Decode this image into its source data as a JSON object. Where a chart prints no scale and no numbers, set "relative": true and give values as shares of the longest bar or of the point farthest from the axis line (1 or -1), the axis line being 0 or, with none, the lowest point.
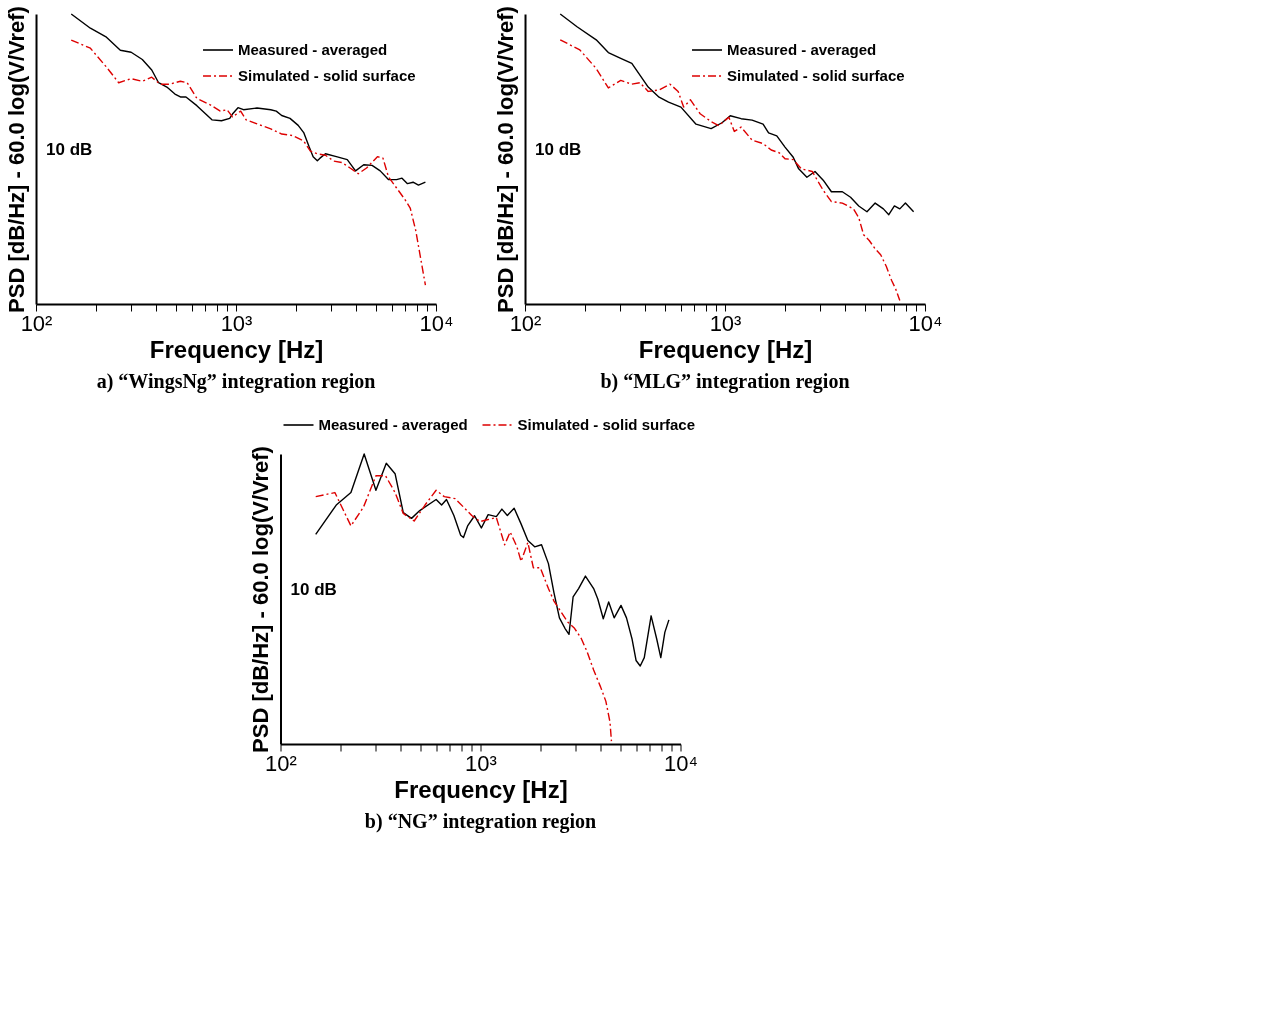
{
  "chart_data": [
    {
      "type": "line",
      "relative": true,
      "log": "x",
      "grid": false,
      "legend": "top right",
      "title": "a) “WingsNg” integration region",
      "xlabel": "Frequency [Hz]",
      "ylabel": "PSD [dB/Hz] - 60.0 log(V/Vref)",
      "annotations": [
        "10 dB"
      ],
      "xlim": [
        100,
        10000
      ],
      "xticks": [
        {
          "value": 100,
          "label": "10²"
        },
        {
          "value": 200,
          "label": null
        },
        {
          "value": 300,
          "label": null
        },
        {
          "value": 400,
          "label": null
        },
        {
          "value": 500,
          "label": null
        },
        {
          "value": 600,
          "label": null
        },
        {
          "value": 700,
          "label": null
        },
        {
          "value": 800,
          "label": null
        },
        {
          "value": 900,
          "label": null
        },
        {
          "value": 1000,
          "label": "10³"
        },
        {
          "value": 2000,
          "label": null
        },
        {
          "value": 3000,
          "label": null
        },
        {
          "value": 4000,
          "label": null
        },
        {
          "value": 5000,
          "label": null
        },
        {
          "value": 6000,
          "label": null
        },
        {
          "value": 7000,
          "label": null
        },
        {
          "value": 8000,
          "label": null
        },
        {
          "value": 9000,
          "label": null
        },
        {
          "value": 10000,
          "label": "10⁴"
        }
      ],
      "series": [
        {
          "name": "Measured - averaged",
          "color": "#000000",
          "line_style": "solid",
          "x": [
            150,
            187,
            225,
            264,
            299,
            340,
            379,
            410,
            451,
            495,
            527,
            562,
            637,
            758,
            846,
            930,
            960,
            1023,
            1090,
            1274,
            1492,
            1589,
            1692,
            1862,
            2046,
            2180,
            2320,
            2430,
            2550,
            2630,
            2800,
            3175,
            3600,
            3960,
            4350,
            4790,
            5260,
            5780,
            6350,
            6760,
            7200,
            7680,
            8170,
            8850
          ],
          "values": [
            1.0,
            0.951,
            0.92,
            0.875,
            0.868,
            0.843,
            0.807,
            0.763,
            0.748,
            0.724,
            0.714,
            0.714,
            0.684,
            0.635,
            0.632,
            0.64,
            0.655,
            0.677,
            0.67,
            0.676,
            0.67,
            0.665,
            0.65,
            0.64,
            0.616,
            0.591,
            0.542,
            0.508,
            0.494,
            0.503,
            0.518,
            0.508,
            0.498,
            0.459,
            0.48,
            0.478,
            0.459,
            0.429,
            0.429,
            0.434,
            0.415,
            0.42,
            0.41,
            0.42
          ]
        },
        {
          "name": "Simulated - solid surface",
          "color": "#dd0000",
          "line_style": "dashed",
          "x": [
            150,
            187,
            225,
            259,
            299,
            340,
            379,
            417,
            465,
            527,
            570,
            637,
            747,
            834,
            902,
            960,
            1055,
            1124,
            1274,
            1492,
            1692,
            1918,
            2180,
            2355,
            2550,
            2800,
            3075,
            3380,
            3720,
            4085,
            4495,
            5095,
            5430,
            5780,
            6350,
            6980,
            7430,
            7920,
            8440,
            8850
          ],
          "values": [
            0.91,
            0.882,
            0.817,
            0.763,
            0.777,
            0.768,
            0.782,
            0.758,
            0.758,
            0.768,
            0.763,
            0.709,
            0.686,
            0.665,
            0.67,
            0.645,
            0.665,
            0.635,
            0.621,
            0.604,
            0.586,
            0.581,
            0.562,
            0.527,
            0.518,
            0.513,
            0.493,
            0.488,
            0.469,
            0.449,
            0.469,
            0.508,
            0.503,
            0.439,
            0.4,
            0.361,
            0.331,
            0.253,
            0.145,
            0.065
          ]
        }
      ]
    },
    {
      "type": "line",
      "relative": true,
      "log": "x",
      "grid": false,
      "legend": "top right",
      "title": "b) “MLG” integration region",
      "xlabel": "Frequency [Hz]",
      "ylabel": "PSD [dB/Hz] - 60.0 log(V/Vref)",
      "annotations": [
        "10 dB"
      ],
      "xlim": [
        100,
        10000
      ],
      "xticks": [
        {
          "value": 100,
          "label": "10²"
        },
        {
          "value": 200,
          "label": null
        },
        {
          "value": 300,
          "label": null
        },
        {
          "value": 400,
          "label": null
        },
        {
          "value": 500,
          "label": null
        },
        {
          "value": 600,
          "label": null
        },
        {
          "value": 700,
          "label": null
        },
        {
          "value": 800,
          "label": null
        },
        {
          "value": 900,
          "label": null
        },
        {
          "value": 1000,
          "label": "10³"
        },
        {
          "value": 2000,
          "label": null
        },
        {
          "value": 3000,
          "label": null
        },
        {
          "value": 4000,
          "label": null
        },
        {
          "value": 5000,
          "label": null
        },
        {
          "value": 6000,
          "label": null
        },
        {
          "value": 7000,
          "label": null
        },
        {
          "value": 8000,
          "label": null
        },
        {
          "value": 9000,
          "label": null
        },
        {
          "value": 10000,
          "label": "10⁴"
        }
      ],
      "series": [
        {
          "name": "Measured - averaged",
          "color": "#000000",
          "line_style": "solid",
          "x": [
            150,
            182,
            227,
            261,
            301,
            342,
            413,
            468,
            522,
            602,
            716,
            852,
            966,
            1062,
            1204,
            1366,
            1550,
            1651,
            1815,
            1995,
            2193,
            2335,
            2567,
            2818,
            3097,
            3404,
            3860,
            4243,
            4663,
            5125,
            5633,
            6192,
            6590,
            7030,
            7480,
            7980,
            8770
          ],
          "values": [
            1.0,
            0.956,
            0.911,
            0.867,
            0.847,
            0.83,
            0.748,
            0.713,
            0.696,
            0.679,
            0.62,
            0.605,
            0.625,
            0.649,
            0.639,
            0.634,
            0.62,
            0.59,
            0.58,
            0.541,
            0.506,
            0.466,
            0.437,
            0.457,
            0.427,
            0.387,
            0.387,
            0.368,
            0.338,
            0.318,
            0.348,
            0.328,
            0.308,
            0.338,
            0.328,
            0.348,
            0.318
          ]
        },
        {
          "name": "Simulated - solid surface",
          "color": "#dd0000",
          "line_style": "dashed",
          "x": [
            150,
            188,
            227,
            261,
            301,
            342,
            376,
            413,
            468,
            531,
            583,
            621,
            672,
            751,
            852,
            930,
            1045,
            1113,
            1204,
            1366,
            1550,
            1702,
            1871,
            1995,
            2193,
            2410,
            2730,
            3097,
            3404,
            3860,
            4385,
            4663,
            4930,
            5260,
            5633,
            6000,
            6400,
            6810,
            7140,
            7480
          ],
          "values": [
            0.911,
            0.876,
            0.812,
            0.745,
            0.771,
            0.758,
            0.763,
            0.733,
            0.738,
            0.758,
            0.733,
            0.679,
            0.704,
            0.656,
            0.629,
            0.615,
            0.644,
            0.595,
            0.61,
            0.565,
            0.553,
            0.531,
            0.521,
            0.501,
            0.498,
            0.466,
            0.457,
            0.392,
            0.353,
            0.348,
            0.328,
            0.298,
            0.239,
            0.219,
            0.19,
            0.17,
            0.13,
            0.081,
            0.051,
            0.012
          ]
        }
      ]
    },
    {
      "type": "line",
      "relative": true,
      "log": "x",
      "grid": false,
      "legend": "top",
      "title": "b) “NG” integration region",
      "xlabel": "Frequency [Hz]",
      "ylabel": "PSD [dB/Hz] - 60.0 log(V/Vref)",
      "annotations": [
        "10 dB"
      ],
      "xlim": [
        100,
        10000
      ],
      "xticks": [
        {
          "value": 100,
          "label": "10²"
        },
        {
          "value": 200,
          "label": null
        },
        {
          "value": 300,
          "label": null
        },
        {
          "value": 400,
          "label": null
        },
        {
          "value": 500,
          "label": null
        },
        {
          "value": 600,
          "label": null
        },
        {
          "value": 700,
          "label": null
        },
        {
          "value": 800,
          "label": null
        },
        {
          "value": 900,
          "label": null
        },
        {
          "value": 1000,
          "label": "10³"
        },
        {
          "value": 2000,
          "label": null
        },
        {
          "value": 3000,
          "label": null
        },
        {
          "value": 4000,
          "label": null
        },
        {
          "value": 5000,
          "label": null
        },
        {
          "value": 6000,
          "label": null
        },
        {
          "value": 7000,
          "label": null
        },
        {
          "value": 8000,
          "label": null
        },
        {
          "value": 9000,
          "label": null
        },
        {
          "value": 10000,
          "label": "10⁴"
        }
      ],
      "series": [
        {
          "name": "Measured - averaged",
          "color": "#000000",
          "line_style": "solid",
          "x": [
            150,
            190,
            225,
            262,
            300,
            338,
            374,
            411,
            452,
            497,
            600,
            639,
            676,
            736,
            796,
            822,
            862,
            934,
            1010,
            1092,
            1200,
            1279,
            1362,
            1473,
            1595,
            1725,
            1866,
            2019,
            2186,
            2329,
            2481,
            2643,
            2770,
            2904,
            3093,
            3347,
            3679,
            3859,
            4110,
            4374,
            4659,
            5040,
            5370,
            5720,
            5995,
            6290,
            6590,
            7130,
            7600,
            7970,
            8350,
            8750
          ],
          "values": [
            0.723,
            0.824,
            0.867,
            1.0,
            0.875,
            0.968,
            0.932,
            0.798,
            0.778,
            0.805,
            0.843,
            0.824,
            0.843,
            0.788,
            0.72,
            0.712,
            0.752,
            0.787,
            0.745,
            0.791,
            0.784,
            0.81,
            0.788,
            0.813,
            0.759,
            0.702,
            0.68,
            0.687,
            0.622,
            0.522,
            0.435,
            0.399,
            0.378,
            0.507,
            0.536,
            0.579,
            0.536,
            0.5,
            0.432,
            0.49,
            0.435,
            0.478,
            0.435,
            0.363,
            0.288,
            0.269,
            0.298,
            0.442,
            0.363,
            0.298,
            0.385,
            0.428
          ]
        },
        {
          "name": "Simulated - solid surface",
          "color": "#dd0000",
          "line_style": "dashed",
          "x": [
            150,
            187,
            225,
            260,
            300,
            335,
            374,
            411,
            466,
            528,
            600,
            659,
            748,
            822,
            904,
            994,
            1092,
            1200,
            1321,
            1407,
            1521,
            1595,
            1725,
            1837,
            1990,
            2186,
            2329,
            2518,
            2728,
            2952,
            3194,
            3404,
            3679,
            3984,
            4236,
            4442,
            4515
          ],
          "values": [
            0.853,
            0.867,
            0.752,
            0.817,
            0.925,
            0.925,
            0.867,
            0.795,
            0.769,
            0.824,
            0.875,
            0.853,
            0.846,
            0.817,
            0.788,
            0.767,
            0.774,
            0.781,
            0.687,
            0.731,
            0.68,
            0.63,
            0.695,
            0.608,
            0.608,
            0.536,
            0.493,
            0.457,
            0.421,
            0.399,
            0.363,
            0.32,
            0.255,
            0.197,
            0.147,
            0.075,
            0.01
          ]
        }
      ]
    }
  ]
}
